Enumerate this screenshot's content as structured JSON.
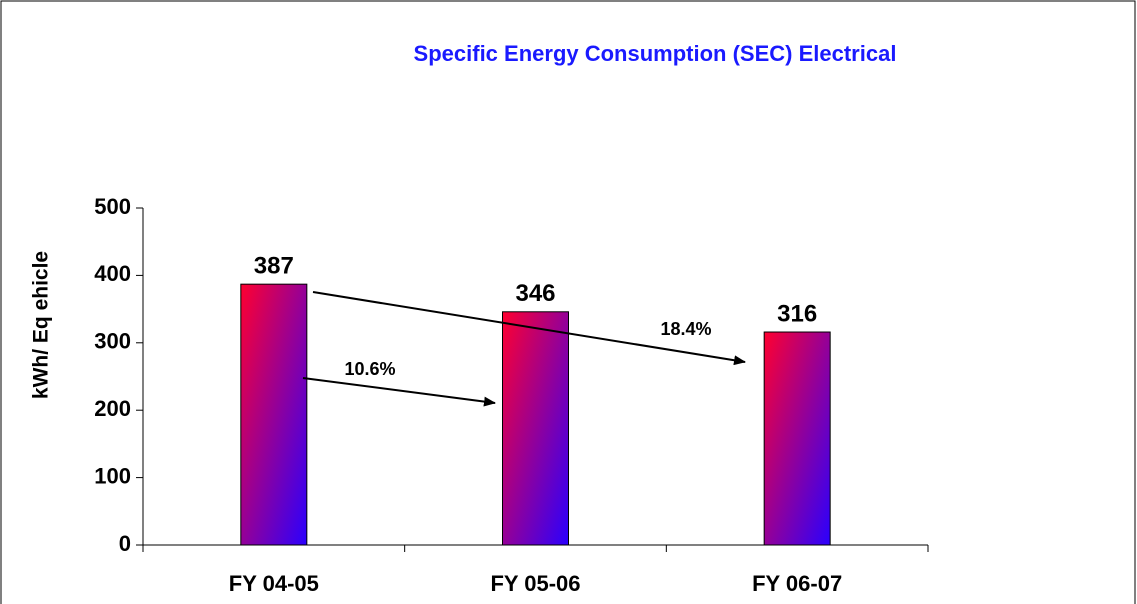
{
  "chart_data": {
    "type": "bar",
    "title": "Specific Energy Consumption (SEC) Electrical",
    "y_label": "kWh/ Eq ehicle",
    "categories": [
      "FY 04-05",
      "FY 05-06",
      "FY 06-07"
    ],
    "values": [
      387,
      346,
      316
    ],
    "color": {
      "from": "#ff0030",
      "to": "#2a00ff"
    },
    "title_color": "#1a1aff",
    "ylim": [
      0,
      500
    ],
    "yticks": [
      0,
      100,
      200,
      300,
      400,
      500
    ],
    "grid": false,
    "annotations": [
      "10.6%",
      "18.4%"
    ]
  }
}
